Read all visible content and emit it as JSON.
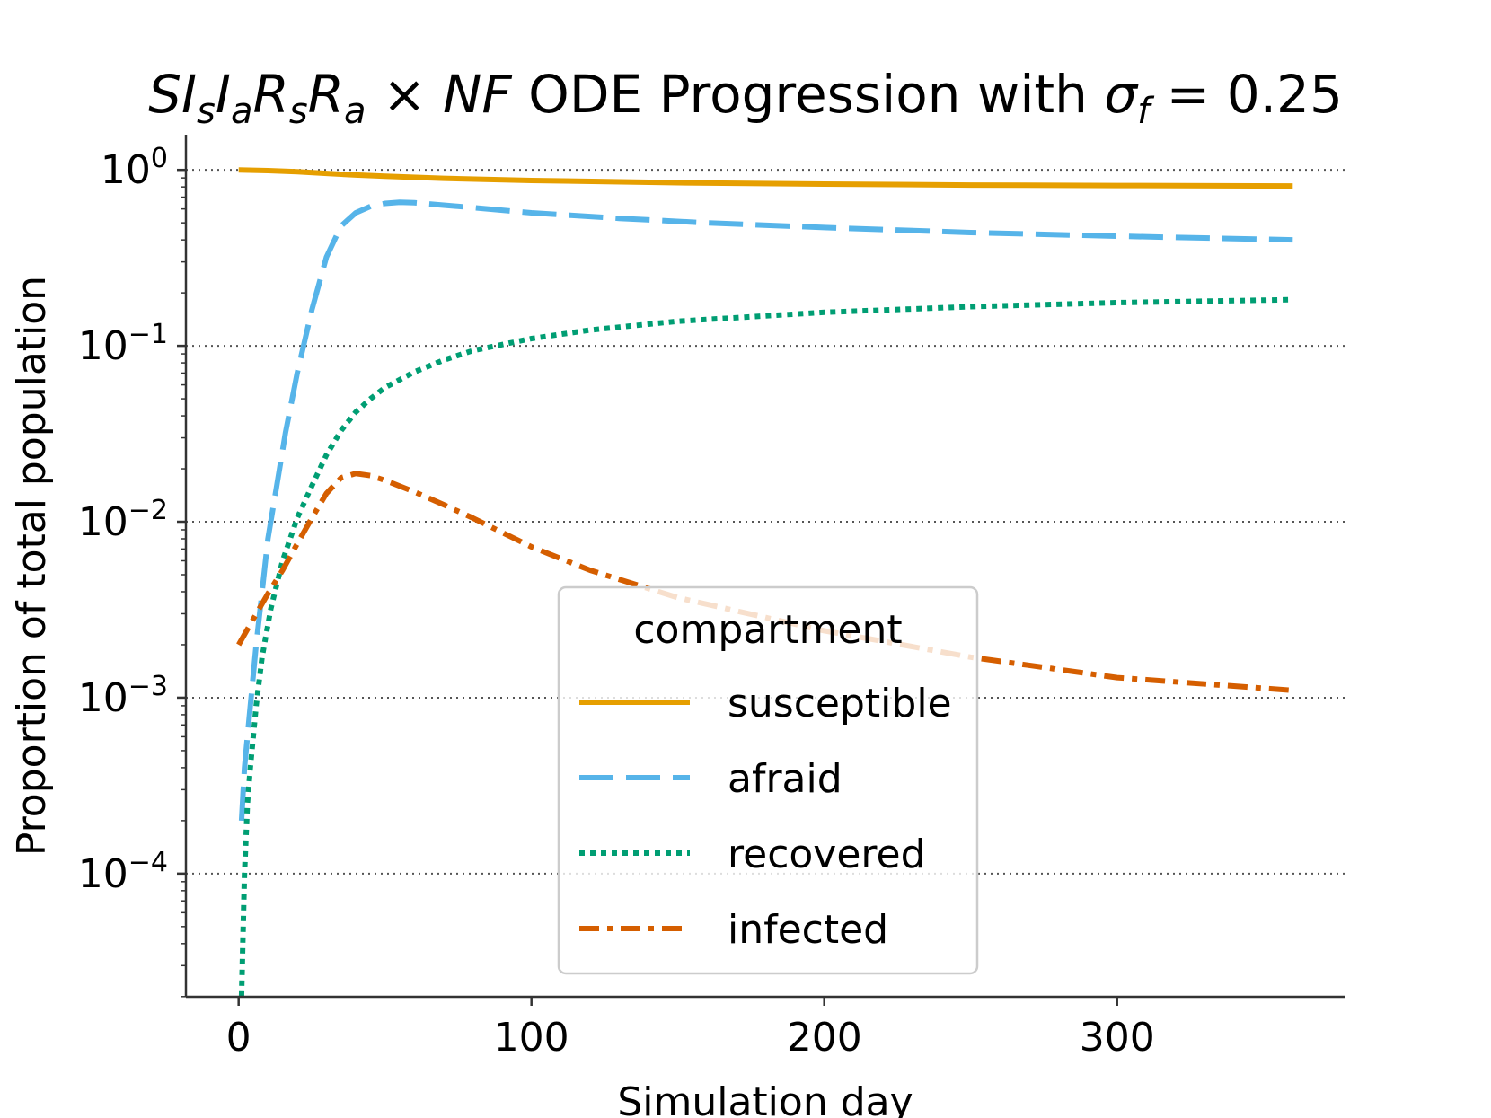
{
  "chart_data": {
    "type": "line",
    "title": "SIₛIₐRₛRₐ × NF ODE Progression with σ_f = 0.25",
    "title_parts": {
      "base": "SI",
      "sub1": "s",
      "mid1": "I",
      "sub2": "a",
      "mid2": "R",
      "sub3": "s",
      "mid3": "R",
      "sub4": "a",
      "times": " × ",
      "nf": "NF",
      "rest": " ODE Progression with ",
      "sigma": "σ",
      "sigma_sub": "f",
      "eq": " = 0.25"
    },
    "xlabel": "Simulation day",
    "ylabel": "Proportion of total population",
    "yscale": "log",
    "xlim": [
      -18,
      378
    ],
    "ylim_log10": [
      -4.7,
      0.2
    ],
    "x_ticks": [
      0,
      100,
      200,
      300
    ],
    "x_tick_labels": [
      "0",
      "100",
      "200",
      "300"
    ],
    "y_ticks": [
      {
        "exp": 0,
        "base": "10",
        "sup": "0"
      },
      {
        "exp": -1,
        "base": "10",
        "sup": "−1"
      },
      {
        "exp": -2,
        "base": "10",
        "sup": "−2"
      },
      {
        "exp": -3,
        "base": "10",
        "sup": "−3"
      },
      {
        "exp": -4,
        "base": "10",
        "sup": "−4"
      }
    ],
    "grid": "horizontal dotted",
    "legend": {
      "title": "compartment",
      "placement": "lower-center"
    },
    "series": [
      {
        "name": "susceptible",
        "color": "#E69F00",
        "style": "solid",
        "x": [
          0,
          10,
          20,
          30,
          40,
          50,
          70,
          100,
          150,
          200,
          250,
          300,
          360
        ],
        "y": [
          1.0,
          0.99,
          0.975,
          0.955,
          0.935,
          0.92,
          0.895,
          0.87,
          0.845,
          0.83,
          0.82,
          0.815,
          0.81
        ]
      },
      {
        "name": "afraid",
        "color": "#56B4E9",
        "style": "dashed",
        "x": [
          1,
          2,
          4,
          6,
          8,
          10,
          13,
          16,
          20,
          25,
          30,
          35,
          40,
          45,
          50,
          55,
          60,
          70,
          80,
          100,
          130,
          160,
          200,
          250,
          300,
          360
        ],
        "y": [
          0.0002,
          0.0004,
          0.0009,
          0.002,
          0.004,
          0.008,
          0.016,
          0.032,
          0.07,
          0.16,
          0.32,
          0.48,
          0.57,
          0.62,
          0.645,
          0.655,
          0.65,
          0.63,
          0.61,
          0.57,
          0.53,
          0.5,
          0.47,
          0.44,
          0.42,
          0.4
        ]
      },
      {
        "name": "recovered",
        "color": "#009E73",
        "style": "dotted",
        "x": [
          1,
          2,
          3,
          4,
          6,
          8,
          11,
          15,
          20,
          25,
          30,
          35,
          40,
          45,
          50,
          60,
          70,
          80,
          100,
          120,
          150,
          200,
          250,
          300,
          360
        ],
        "y": [
          2e-05,
          0.0001,
          0.00025,
          0.0004,
          0.0009,
          0.0017,
          0.0032,
          0.006,
          0.0105,
          0.016,
          0.024,
          0.033,
          0.042,
          0.05,
          0.058,
          0.071,
          0.083,
          0.094,
          0.11,
          0.123,
          0.138,
          0.155,
          0.167,
          0.176,
          0.183
        ]
      },
      {
        "name": "infected",
        "color": "#D55E00",
        "style": "dashdot",
        "x": [
          0,
          5,
          10,
          15,
          20,
          25,
          30,
          35,
          40,
          45,
          50,
          60,
          70,
          80,
          100,
          120,
          150,
          200,
          250,
          300,
          360
        ],
        "y": [
          0.002,
          0.0028,
          0.0039,
          0.0053,
          0.0075,
          0.0105,
          0.0145,
          0.0178,
          0.0188,
          0.0183,
          0.0172,
          0.0148,
          0.0125,
          0.0105,
          0.0072,
          0.0053,
          0.0037,
          0.0024,
          0.0017,
          0.0013,
          0.0011
        ]
      }
    ]
  }
}
